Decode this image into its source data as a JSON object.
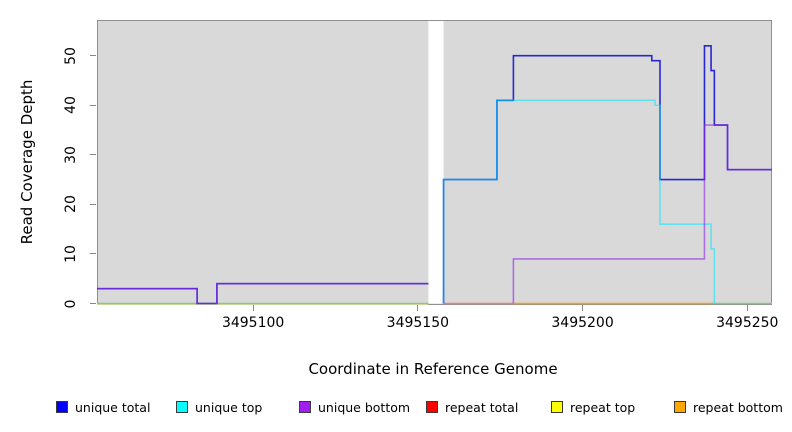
{
  "figure": {
    "y_axis_title": "Read Coverage Depth",
    "x_axis_title": "Coordinate in Reference Genome"
  },
  "chart_data": {
    "type": "line",
    "subtype": "step-coverage",
    "title": "",
    "xlabel": "Coordinate in Reference Genome",
    "ylabel": "Read Coverage Depth",
    "xlim": [
      3495052.6,
      3495257.5
    ],
    "ylim": [
      -0.1,
      57.2
    ],
    "x_ticks": [
      3495100,
      3495150,
      3495200,
      3495250
    ],
    "y_ticks": [
      0,
      10,
      20,
      30,
      40,
      50
    ],
    "grid": "off",
    "legend_position": "bottom",
    "plot_bg": "#d9d9d9",
    "plot_border": "#8f8f8f",
    "gap_region": [
      3495153.2,
      3495157.8
    ],
    "series": [
      {
        "name": "unique total",
        "legend_color": "#0000ff",
        "stroke": "#2727d3",
        "opacity": 1,
        "draw": true,
        "regions": [
          [
            [
              3495052.6,
              3495083,
              3
            ],
            [
              3495083,
              3495089,
              0
            ],
            [
              3495089,
              3495153.2,
              4
            ]
          ],
          [
            [
              3495157.8,
              3495157.8,
              0
            ],
            [
              3495157.8,
              3495174,
              25
            ],
            [
              3495174,
              3495179,
              41
            ],
            [
              3495179,
              3495221,
              50
            ],
            [
              3495221,
              3495223.5,
              49
            ],
            [
              3495223.5,
              3495237,
              25
            ],
            [
              3495237,
              3495239,
              52
            ],
            [
              3495239,
              3495240,
              47
            ],
            [
              3495240,
              3495244,
              36
            ],
            [
              3495244,
              3495257.5,
              27
            ]
          ]
        ]
      },
      {
        "name": "unique top",
        "legend_color": "#00ffff",
        "stroke": "#00e8ff",
        "opacity": 0.55,
        "draw": true,
        "regions": [
          [
            [
              3495052.6,
              3495153.2,
              0
            ]
          ],
          [
            [
              3495157.8,
              3495157.8,
              0
            ],
            [
              3495157.8,
              3495174,
              25
            ],
            [
              3495174,
              3495222,
              41
            ],
            [
              3495222,
              3495223.5,
              40
            ],
            [
              3495223.5,
              3495239,
              16
            ],
            [
              3495239,
              3495240,
              11
            ],
            [
              3495240,
              3495257.5,
              0
            ]
          ]
        ]
      },
      {
        "name": "unique bottom",
        "legend_color": "#a020f0",
        "stroke": "#8f2fe0",
        "opacity": 0.62,
        "draw": true,
        "regions": [
          [
            [
              3495052.6,
              3495083,
              3
            ],
            [
              3495083,
              3495089,
              0
            ],
            [
              3495089,
              3495153.2,
              4
            ]
          ],
          [
            [
              3495157.8,
              3495179,
              0
            ],
            [
              3495179,
              3495237,
              9
            ],
            [
              3495237,
              3495244,
              36
            ],
            [
              3495244,
              3495257.5,
              27
            ]
          ]
        ]
      },
      {
        "name": "repeat total",
        "legend_color": "#ff0000",
        "draw": false,
        "regions": [
          [
            [
              3495052.6,
              3495153.2,
              0
            ]
          ],
          [
            [
              3495157.8,
              3495257.5,
              0
            ]
          ]
        ]
      },
      {
        "name": "repeat top",
        "legend_color": "#ffff00",
        "draw": false,
        "regions": [
          [
            [
              3495052.6,
              3495153.2,
              0
            ]
          ],
          [
            [
              3495157.8,
              3495257.5,
              0
            ]
          ]
        ]
      },
      {
        "name": "repeat bottom",
        "legend_color": "#ffa500",
        "draw": false,
        "regions": [
          [
            [
              3495052.6,
              3495153.2,
              0
            ]
          ],
          [
            [
              3495157.8,
              3495257.5,
              0
            ]
          ]
        ]
      }
    ],
    "baseline_visible_segments": [
      {
        "x0": 3495052.6,
        "x1": 3495153.2,
        "color": "#ececa0",
        "dy": 1.6
      },
      {
        "x0": 3495052.6,
        "x1": 3495153.2,
        "color": "#85c785",
        "dy": 0
      },
      {
        "x0": 3495157.8,
        "x1": 3495179,
        "color": "#ec7c84",
        "dy": 0
      },
      {
        "x0": 3495179,
        "x1": 3495239,
        "color": "#ff9d17",
        "dy": 0
      },
      {
        "x0": 3495239,
        "x1": 3495257.5,
        "color": "#85c785",
        "dy": 0
      }
    ]
  },
  "legend": {
    "items": [
      {
        "label": "unique total",
        "color": "#0000ff"
      },
      {
        "label": "unique top",
        "color": "#00ffff"
      },
      {
        "label": "unique bottom",
        "color": "#a020f0"
      },
      {
        "label": "repeat total",
        "color": "#ff0000"
      },
      {
        "label": "repeat top",
        "color": "#ffff00"
      },
      {
        "label": "repeat bottom",
        "color": "#ffa500"
      }
    ]
  }
}
